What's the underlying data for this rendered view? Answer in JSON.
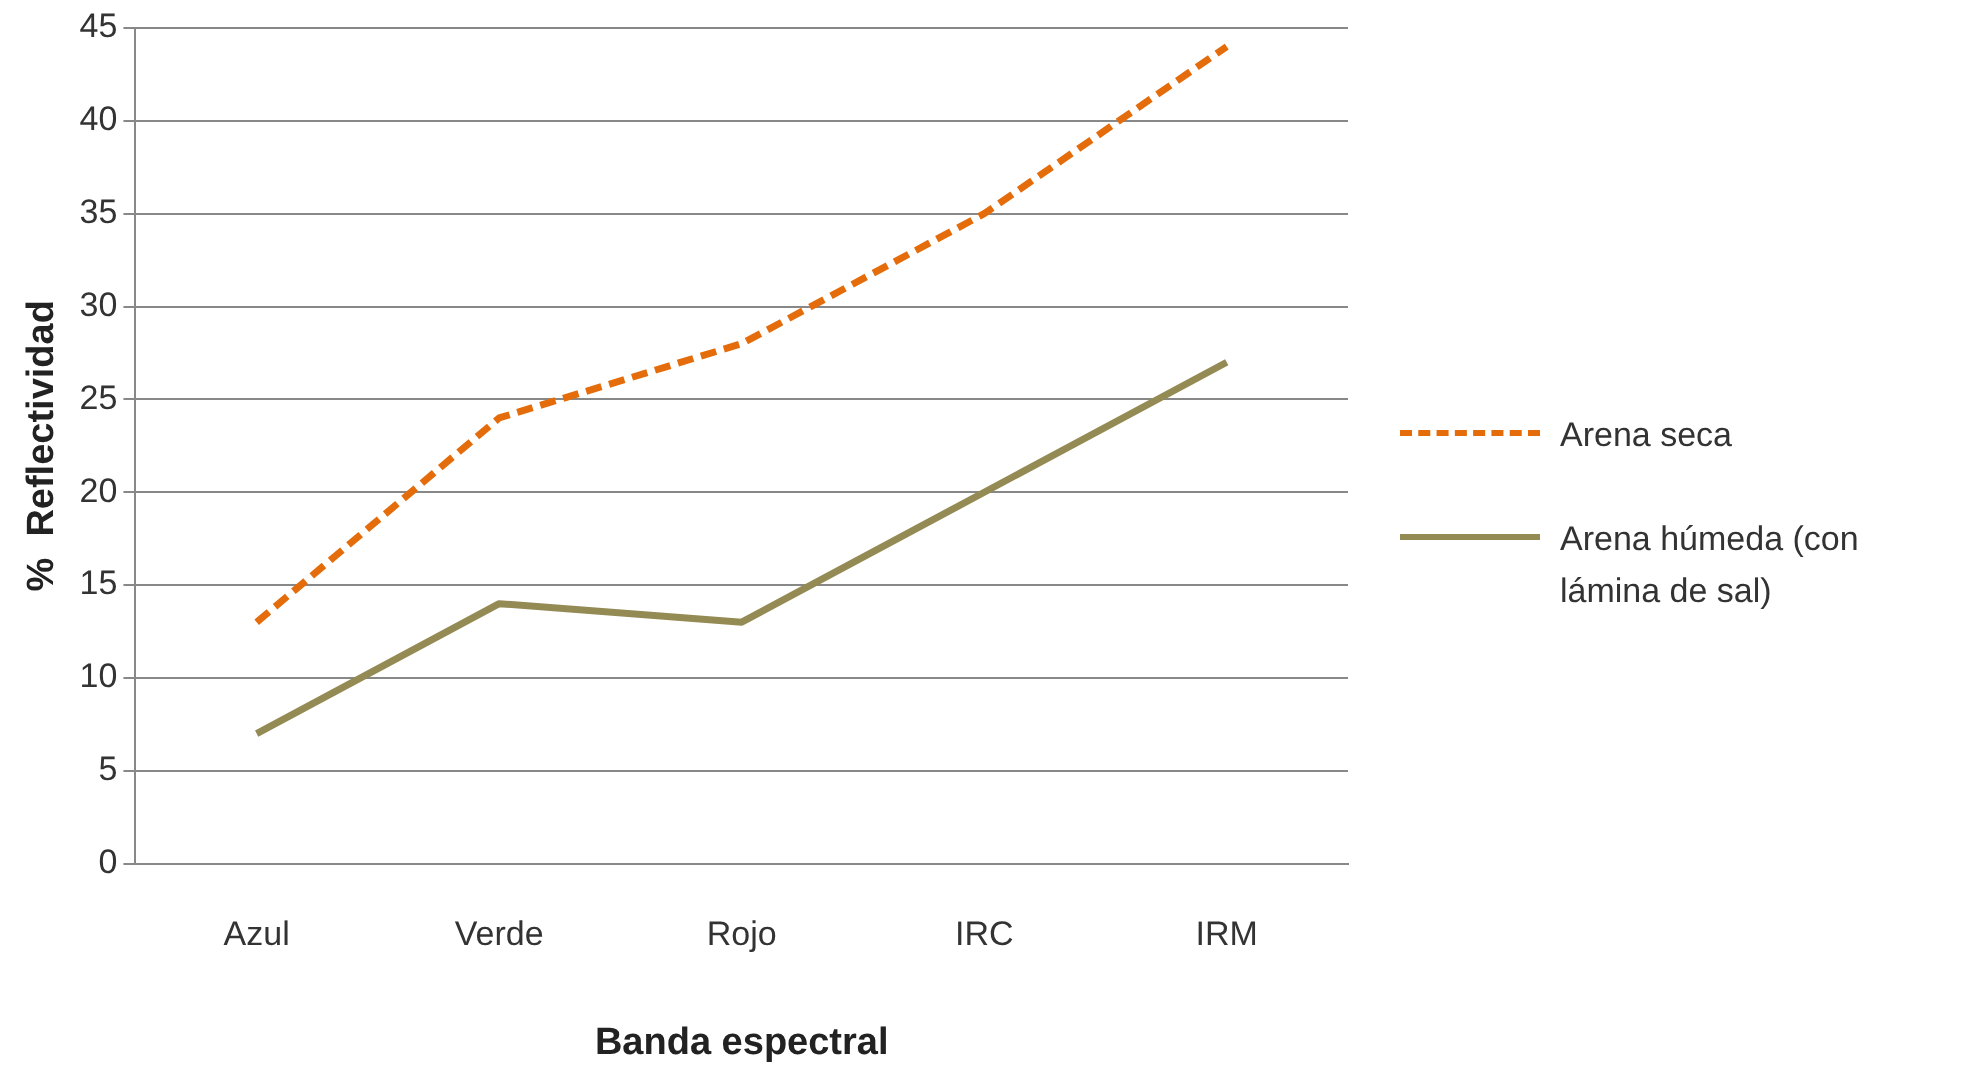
{
  "chart_data": {
    "type": "line",
    "xlabel": "Banda espectral",
    "ylabel": "%  Reflectividad",
    "categories": [
      "Azul",
      "Verde",
      "Rojo",
      "IRC",
      "IRM"
    ],
    "series": [
      {
        "name": "Arena seca",
        "color": "#e46c0a",
        "values": [
          13,
          24,
          28,
          35,
          44
        ],
        "line_style": "dashed"
      },
      {
        "name": "Arena húmeda (con lámina de sal)",
        "color": "#948a54",
        "values": [
          7,
          14,
          13,
          20,
          27
        ],
        "line_style": "solid"
      }
    ],
    "ylim": [
      0,
      45
    ],
    "yticks": [
      0,
      5,
      10,
      15,
      20,
      25,
      30,
      35,
      40,
      45
    ],
    "grid": "y",
    "legend": "right",
    "marker": "none"
  }
}
